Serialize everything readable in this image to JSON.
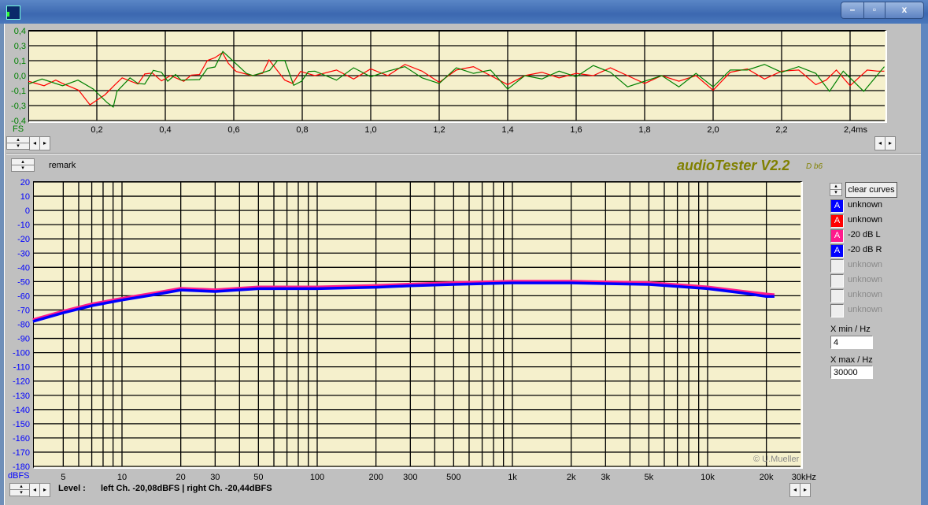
{
  "window": {
    "controls": [
      "minimize",
      "maximize",
      "close"
    ],
    "close_glyph": "x"
  },
  "scope": {
    "y_unit": "FS",
    "y_labels": [
      "0,4",
      "0,3",
      "0,1",
      "0,0",
      "-0,1",
      "-0,3",
      "-0,4"
    ],
    "x_labels": [
      "0,2",
      "0,4",
      "0,6",
      "0,8",
      "1,0",
      "1,2",
      "1,4",
      "1,6",
      "1,8",
      "2,0",
      "2,2",
      "2,4ms"
    ],
    "colors": {
      "label": "#008000",
      "trace_left": "#ff0000",
      "trace_right": "#008000"
    }
  },
  "spectrum": {
    "remark_label": "remark",
    "app_title": "audioTester V2.2",
    "app_version": "D b6",
    "copyright": "© U.Mueller",
    "y_unit": "dBFS",
    "x_labels": [
      "5",
      "10",
      "20",
      "30",
      "50",
      "100",
      "200",
      "300",
      "500",
      "1k",
      "2k",
      "3k",
      "5k",
      "10k",
      "20k",
      "30kHz"
    ],
    "colors": {
      "axis_label": "#0000ff",
      "title": "#808000",
      "curve_left": "#ff1a8c",
      "curve_right": "#0000ff"
    }
  },
  "legend": {
    "clear_curves_label": "clear curves",
    "items": [
      {
        "glyph": "A",
        "label": "unknown",
        "color": "#0000ff",
        "active": true
      },
      {
        "glyph": "A",
        "label": "unknown",
        "color": "#ff0000",
        "active": true
      },
      {
        "glyph": "A",
        "label": "-20 dB L",
        "color": "#ff1a8c",
        "active": true
      },
      {
        "glyph": "A",
        "label": "-20 dB R",
        "color": "#0000ff",
        "active": true
      },
      {
        "glyph": "",
        "label": "unknown",
        "color": "#eeeeee",
        "active": false
      },
      {
        "glyph": "",
        "label": "unknown",
        "color": "#eeeeee",
        "active": false
      },
      {
        "glyph": "",
        "label": "unknown",
        "color": "#eeeeee",
        "active": false
      },
      {
        "glyph": "",
        "label": "unknown",
        "color": "#eeeeee",
        "active": false
      }
    ],
    "xmin_label": "X min / Hz",
    "xmin_value": "4",
    "xmax_label": "X max / Hz",
    "xmax_value": "30000"
  },
  "status": {
    "level_label": "Level :",
    "level_text": "left Ch. -20,08dBFS | right Ch. -20,44dBFS"
  },
  "chart_data": [
    {
      "type": "line",
      "xlabel": "ms",
      "ylabel": "FS",
      "xlim": [
        0,
        2.5
      ],
      "ylim": [
        -0.4,
        0.4
      ],
      "grid": true,
      "series": [
        {
          "color": "#ff0000",
          "x": [
            0,
            0.046,
            0.08,
            0.1,
            0.147,
            0.18,
            0.224,
            0.255,
            0.274,
            0.32,
            0.34,
            0.362,
            0.389,
            0.415,
            0.454,
            0.476,
            0.5,
            0.523,
            0.545,
            0.567,
            0.584,
            0.607,
            0.653,
            0.684,
            0.703,
            0.749,
            0.772,
            0.795,
            0.837,
            0.9,
            0.95,
            1.0,
            1.05,
            1.1,
            1.15,
            1.2,
            1.25,
            1.3,
            1.35,
            1.4,
            1.45,
            1.5,
            1.55,
            1.6,
            1.65,
            1.7,
            1.75,
            1.8,
            1.85,
            1.9,
            1.95,
            2.0,
            2.05,
            2.1,
            2.15,
            2.2,
            2.25,
            2.3,
            2.33,
            2.36,
            2.4,
            2.45,
            2.48,
            2.5
          ],
          "y": [
            -0.05,
            -0.09,
            -0.04,
            -0.07,
            -0.13,
            -0.26,
            -0.17,
            -0.075,
            -0.02,
            -0.075,
            0.015,
            0.023,
            -0.047,
            0,
            -0.05,
            0.005,
            0.01,
            0.135,
            0.16,
            0.205,
            0.11,
            0.037,
            0,
            0.02,
            0.14,
            -0.04,
            -0.07,
            0.037,
            0,
            0.05,
            -0.03,
            0.06,
            0.0,
            0.1,
            0.04,
            -0.06,
            0.05,
            0.08,
            0.0,
            -0.08,
            0.0,
            0.03,
            -0.02,
            0.02,
            0.0,
            0.07,
            0.0,
            -0.07,
            0.0,
            -0.05,
            0.0,
            -0.13,
            0.03,
            0.06,
            -0.03,
            0.04,
            0.05,
            -0.08,
            -0.04,
            0.05,
            -0.09,
            0.05,
            0.04,
            0.04
          ]
        },
        {
          "color": "#008000",
          "x": [
            0,
            0.04,
            0.1,
            0.145,
            0.19,
            0.23,
            0.248,
            0.259,
            0.297,
            0.32,
            0.34,
            0.365,
            0.389,
            0.407,
            0.43,
            0.446,
            0.5,
            0.523,
            0.545,
            0.568,
            0.591,
            0.637,
            0.656,
            0.705,
            0.728,
            0.749,
            0.775,
            0.798,
            0.818,
            0.837,
            0.9,
            0.95,
            1.0,
            1.05,
            1.1,
            1.15,
            1.2,
            1.25,
            1.3,
            1.35,
            1.4,
            1.45,
            1.5,
            1.55,
            1.6,
            1.65,
            1.7,
            1.75,
            1.8,
            1.85,
            1.9,
            1.95,
            2.0,
            2.05,
            2.1,
            2.15,
            2.2,
            2.25,
            2.3,
            2.34,
            2.38,
            2.44,
            2.5
          ],
          "y": [
            -0.075,
            -0.03,
            -0.09,
            -0.04,
            -0.12,
            -0.24,
            -0.28,
            -0.14,
            -0.02,
            -0.07,
            -0.075,
            0.047,
            0.03,
            -0.05,
            0.01,
            -0.04,
            -0.035,
            0.065,
            0.077,
            0.215,
            0.15,
            0.02,
            0.0,
            0.047,
            0.135,
            0.135,
            -0.086,
            -0.05,
            0.037,
            0.04,
            -0.04,
            0.07,
            -0.01,
            0.04,
            0.08,
            -0.02,
            -0.07,
            0.07,
            0.02,
            0.05,
            -0.12,
            0.0,
            -0.03,
            0.04,
            -0.01,
            0.09,
            0.03,
            -0.1,
            -0.05,
            0.0,
            -0.1,
            0.02,
            -0.1,
            0.05,
            0.05,
            0.1,
            0.03,
            0.08,
            0.02,
            -0.14,
            0.04,
            -0.14,
            0.08
          ]
        }
      ]
    },
    {
      "type": "line",
      "xlabel": "Hz",
      "ylabel": "dBFS",
      "xscale": "log",
      "xlim": [
        3.5,
        30000
      ],
      "ylim": [
        -180,
        20
      ],
      "grid": true,
      "y_ticks": [
        20,
        10,
        0,
        -10,
        -20,
        -30,
        -40,
        -50,
        -60,
        -70,
        -80,
        -90,
        -100,
        -110,
        -120,
        -130,
        -140,
        -150,
        -160,
        -170,
        -180
      ],
      "series": [
        {
          "name": "-20 dB L",
          "color": "#ff1a8c",
          "x": [
            3.5,
            5,
            7,
            10,
            15,
            20,
            30,
            50,
            100,
            200,
            300,
            500,
            1000,
            2000,
            3000,
            5000,
            8000,
            10000,
            15000,
            20000,
            22000
          ],
          "y": [
            -77.5,
            -71.5,
            -66.5,
            -62.5,
            -58.5,
            -55.5,
            -56.5,
            -54.5,
            -54.5,
            -53.5,
            -52.5,
            -51.5,
            -50.5,
            -50.5,
            -51,
            -51.5,
            -53.5,
            -54.5,
            -57.5,
            -59.5,
            -60
          ]
        },
        {
          "name": "-20 dB R",
          "color": "#0000ff",
          "x": [
            3.5,
            5,
            7,
            10,
            15,
            20,
            30,
            50,
            100,
            200,
            300,
            500,
            1000,
            2000,
            3000,
            5000,
            8000,
            10000,
            15000,
            20000,
            22000
          ],
          "y": [
            -78,
            -72,
            -67,
            -63,
            -59,
            -56,
            -57,
            -55,
            -55,
            -54,
            -53,
            -52,
            -51,
            -51,
            -51.5,
            -52,
            -54,
            -55,
            -58,
            -60.5,
            -60.5
          ]
        }
      ]
    }
  ]
}
